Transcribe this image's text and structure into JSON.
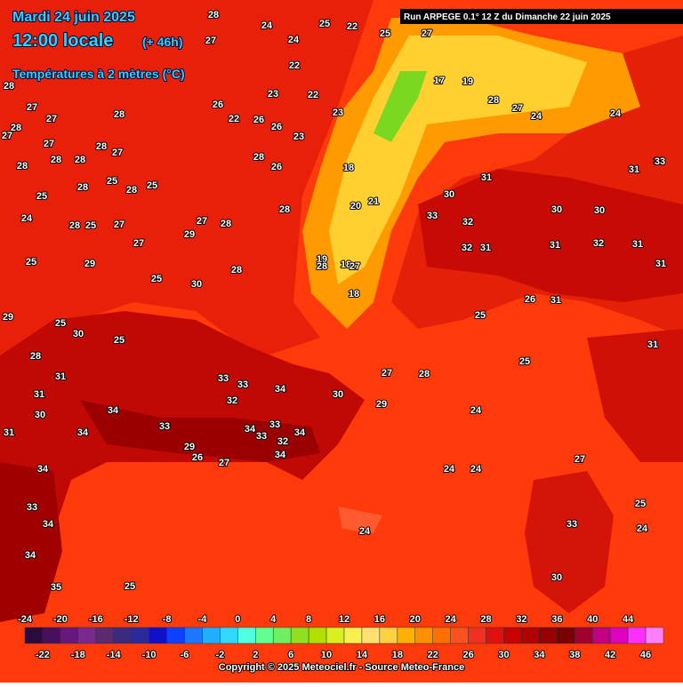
{
  "header": {
    "date": "Mardi 24 juin 2025",
    "time": "12:00 locale",
    "lead": "(+ 46h)",
    "variable": "Températures à 2 mètres (°C)",
    "run": "Run ARPEGE 0.1° 12 Z du Dimanche 22 juin 2025"
  },
  "map": {
    "values": [
      28,
      27,
      28,
      27,
      27,
      28,
      28,
      27,
      27,
      28,
      27,
      28,
      28,
      28,
      28,
      25,
      28,
      25,
      25,
      24,
      28,
      25,
      27,
      27,
      27,
      29,
      28,
      25,
      29,
      25,
      30,
      28,
      29,
      25,
      30,
      25,
      28,
      31,
      31,
      30,
      31,
      34,
      34,
      33,
      29,
      27,
      26,
      34,
      33,
      34,
      32,
      34,
      33,
      33,
      34,
      32,
      33,
      30,
      29,
      27,
      28,
      25,
      25,
      24,
      24,
      24,
      27,
      25,
      24,
      33,
      30,
      25,
      35,
      34,
      33,
      34,
      34,
      31,
      30,
      30,
      31,
      32,
      31,
      31,
      33,
      31,
      30,
      32,
      33,
      32,
      31,
      26,
      31,
      31,
      33,
      24,
      23,
      18,
      20,
      21,
      18,
      19,
      18,
      17,
      19,
      28,
      27,
      24,
      24,
      25,
      22,
      27,
      25,
      24,
      22,
      24,
      23,
      22,
      23,
      26,
      22,
      26,
      26,
      28,
      26,
      28,
      28,
      27
    ]
  },
  "colorbar": {
    "labels": [
      -24,
      -22,
      -20,
      -18,
      -16,
      -14,
      -12,
      -10,
      -8,
      -6,
      -4,
      -2,
      0,
      2,
      4,
      6,
      8,
      10,
      12,
      14,
      16,
      18,
      20,
      22,
      24,
      26,
      28,
      30,
      32,
      34,
      36,
      38,
      40,
      42,
      44,
      46
    ],
    "colors": [
      "#2d0a3d",
      "#4a0f5c",
      "#66197a",
      "#7a2a8c",
      "#5c2a6e",
      "#3c2a7c",
      "#2a2a9a",
      "#1010c8",
      "#1040ff",
      "#1e78ff",
      "#20b0ff",
      "#30d8ff",
      "#50ffe0",
      "#60ff90",
      "#70f060",
      "#90e020",
      "#b0e000",
      "#d8f020",
      "#f8f050",
      "#ffe070",
      "#ffd040",
      "#ffb000",
      "#ff9000",
      "#ff7000",
      "#ff5020",
      "#f03020",
      "#e01010",
      "#c80000",
      "#b00000",
      "#960000",
      "#7a0000",
      "#a00030",
      "#c00080",
      "#e000c0",
      "#ff30ff",
      "#ff80ff"
    ]
  },
  "footer": {
    "copyright": "Copyright © 2025 Meteociel.fr - Source Meteo-France"
  }
}
